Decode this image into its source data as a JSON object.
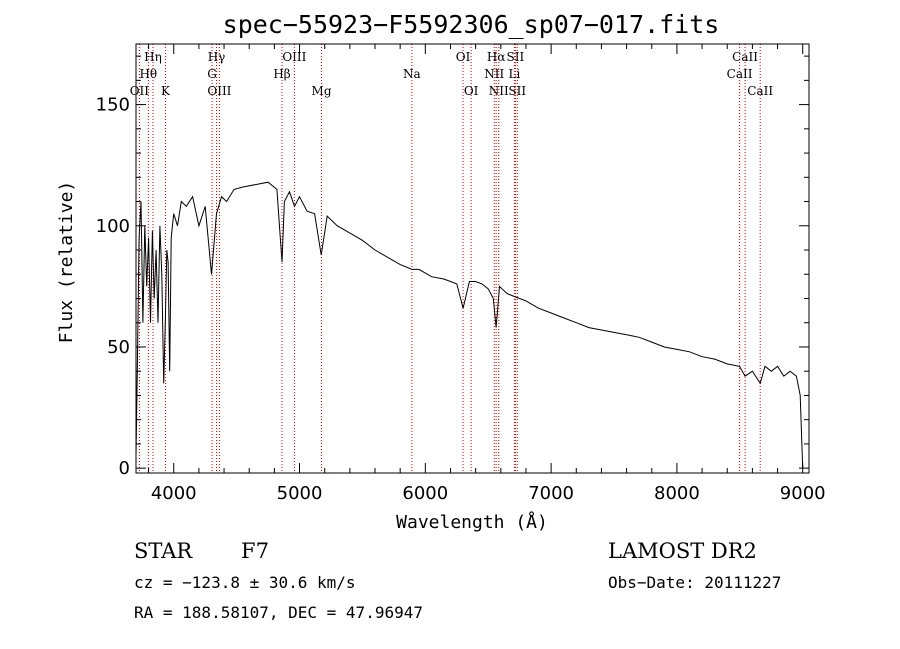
{
  "chart_data": {
    "type": "line",
    "title": "spec−55923−F5592306_sp07−017.fits",
    "xlabel": "Wavelength (Å)",
    "ylabel": "Flux (relative)",
    "xlim": [
      3700,
      9050
    ],
    "ylim": [
      -2,
      175
    ],
    "x_ticks": [
      4000,
      5000,
      6000,
      7000,
      8000,
      9000
    ],
    "y_ticks": [
      0,
      50,
      100,
      150
    ],
    "x_tick_labels": [
      "4000",
      "5000",
      "6000",
      "7000",
      "8000",
      "9000"
    ],
    "y_tick_labels": [
      "0",
      "50",
      "100",
      "150"
    ],
    "grid": false,
    "line_color": "#000000",
    "marker_color": "#cc0000",
    "series": [
      {
        "x": [
          3700,
          3710,
          3725,
          3740,
          3755,
          3770,
          3785,
          3800,
          3815,
          3830,
          3845,
          3860,
          3875,
          3890,
          3905,
          3920,
          3933,
          3945,
          3955,
          3968,
          3980,
          4000,
          4030,
          4060,
          4100,
          4150,
          4200,
          4250,
          4300,
          4340,
          4380,
          4420,
          4480,
          4550,
          4650,
          4750,
          4820,
          4861,
          4880,
          4920,
          4960,
          5000,
          5060,
          5120,
          5172,
          5220,
          5300,
          5400,
          5500,
          5600,
          5700,
          5800,
          5893,
          5950,
          6050,
          6150,
          6250,
          6300,
          6350,
          6400,
          6450,
          6500,
          6540,
          6563,
          6590,
          6650,
          6700,
          6750,
          6800,
          6900,
          7000,
          7100,
          7200,
          7300,
          7400,
          7500,
          7600,
          7700,
          7800,
          7900,
          8000,
          8100,
          8200,
          8300,
          8400,
          8498,
          8542,
          8600,
          8662,
          8700,
          8750,
          8800,
          8850,
          8900,
          8950,
          8980,
          9000
        ],
        "y": [
          5,
          40,
          95,
          110,
          60,
          100,
          75,
          95,
          60,
          98,
          70,
          90,
          60,
          100,
          80,
          35,
          60,
          90,
          85,
          40,
          95,
          105,
          100,
          110,
          108,
          112,
          100,
          108,
          80,
          105,
          112,
          110,
          115,
          116,
          117,
          118,
          115,
          85,
          110,
          114,
          108,
          112,
          106,
          105,
          88,
          104,
          100,
          97,
          94,
          90,
          87,
          84,
          82,
          82,
          79,
          78,
          76,
          66,
          77,
          77,
          76,
          74,
          70,
          58,
          75,
          72,
          71,
          70,
          69,
          66,
          64,
          62,
          60,
          58,
          57,
          56,
          55,
          54,
          52,
          50,
          49,
          48,
          46,
          45,
          43,
          42,
          38,
          40,
          35,
          42,
          40,
          42,
          38,
          40,
          38,
          30,
          0
        ]
      }
    ],
    "lines": [
      {
        "name": "OII",
        "x": 3727,
        "row": 2
      },
      {
        "name": "Hθ",
        "x": 3798,
        "row": 1
      },
      {
        "name": "Hη",
        "x": 3835,
        "row": 0
      },
      {
        "name": "K",
        "x": 3934,
        "row": 2
      },
      {
        "name": "Hγ",
        "x": 4340,
        "row": 0
      },
      {
        "name": "G",
        "x": 4305,
        "row": 1
      },
      {
        "name": "OIII",
        "x": 4363,
        "row": 2
      },
      {
        "name": "Hβ",
        "x": 4861,
        "row": 1
      },
      {
        "name": "OIII",
        "x": 4959,
        "row": 0
      },
      {
        "name": "Mg",
        "x": 5175,
        "row": 2
      },
      {
        "name": "Na",
        "x": 5893,
        "row": 1
      },
      {
        "name": "OI",
        "x": 6300,
        "row": 0
      },
      {
        "name": "OI",
        "x": 6364,
        "row": 2
      },
      {
        "name": "Hα",
        "x": 6563,
        "row": 0
      },
      {
        "name": "NII",
        "x": 6548,
        "row": 1
      },
      {
        "name": "NII",
        "x": 6584,
        "row": 2
      },
      {
        "name": "SII",
        "x": 6716,
        "row": 0
      },
      {
        "name": "Li",
        "x": 6708,
        "row": 1
      },
      {
        "name": "SII",
        "x": 6731,
        "row": 2
      },
      {
        "name": "CaII",
        "x": 8498,
        "row": 1
      },
      {
        "name": "CaII",
        "x": 8542,
        "row": 0
      },
      {
        "name": "CaII",
        "x": 8662,
        "row": 2
      }
    ]
  },
  "info": {
    "object_class": "STAR",
    "subclass": "F7",
    "survey": "LAMOST DR2",
    "cz": "cz = −123.8 ± 30.6 km/s",
    "obs_date": "Obs−Date: 20111227",
    "coords": "RA = 188.58107, DEC =  47.96947"
  }
}
